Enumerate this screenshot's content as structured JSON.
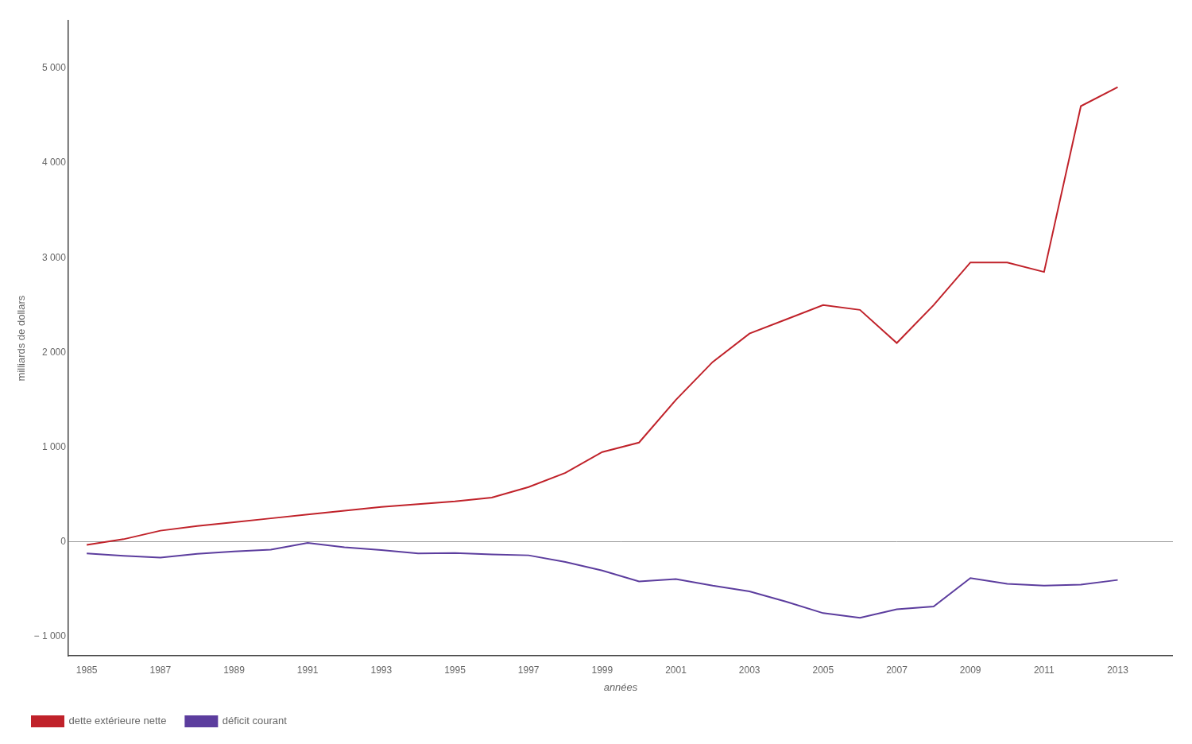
{
  "chart_data": {
    "type": "line",
    "x": [
      1985,
      1986,
      1987,
      1988,
      1989,
      1990,
      1991,
      1992,
      1993,
      1994,
      1995,
      1996,
      1997,
      1998,
      1999,
      2000,
      2001,
      2002,
      2003,
      2004,
      2005,
      2006,
      2007,
      2008,
      2009,
      2010,
      2011,
      2012,
      2013
    ],
    "series": [
      {
        "name": "dette extérieure nette",
        "color": "#c0222a",
        "values": [
          -30,
          30,
          120,
          170,
          210,
          250,
          290,
          330,
          370,
          400,
          430,
          470,
          580,
          730,
          950,
          1050,
          1500,
          1900,
          2200,
          2350,
          2500,
          2450,
          2100,
          2500,
          2950,
          2950,
          2850,
          4600,
          4800
        ]
      },
      {
        "name": "déficit courant",
        "color": "#5c3d9e",
        "values": [
          -120,
          -145,
          -165,
          -125,
          -100,
          -80,
          -10,
          -55,
          -85,
          -120,
          -115,
          -130,
          -140,
          -210,
          -300,
          -415,
          -390,
          -460,
          -520,
          -630,
          -750,
          -800,
          -710,
          -680,
          -380,
          -440,
          -460,
          -450,
          -400
        ]
      }
    ],
    "x_label": "années",
    "y_label": "milliards de dollars",
    "xlim": [
      1984.5,
      2014.5
    ],
    "xticks": [
      1985,
      1987,
      1989,
      1991,
      1993,
      1995,
      1997,
      1999,
      2001,
      2003,
      2005,
      2007,
      2009,
      2011,
      2013
    ],
    "ylim": [
      -1200,
      5500
    ],
    "yticks": [
      {
        "value": -1000,
        "label": "− 1 000"
      },
      0,
      {
        "value": 1000,
        "label": "1 000"
      },
      {
        "value": 2000,
        "label": "2 000"
      },
      {
        "value": 3000,
        "label": "3 000"
      },
      {
        "value": 4000,
        "label": "4 000"
      },
      {
        "value": 5000,
        "label": "5 000"
      }
    ],
    "grid": false,
    "legend": "bottom-left"
  }
}
